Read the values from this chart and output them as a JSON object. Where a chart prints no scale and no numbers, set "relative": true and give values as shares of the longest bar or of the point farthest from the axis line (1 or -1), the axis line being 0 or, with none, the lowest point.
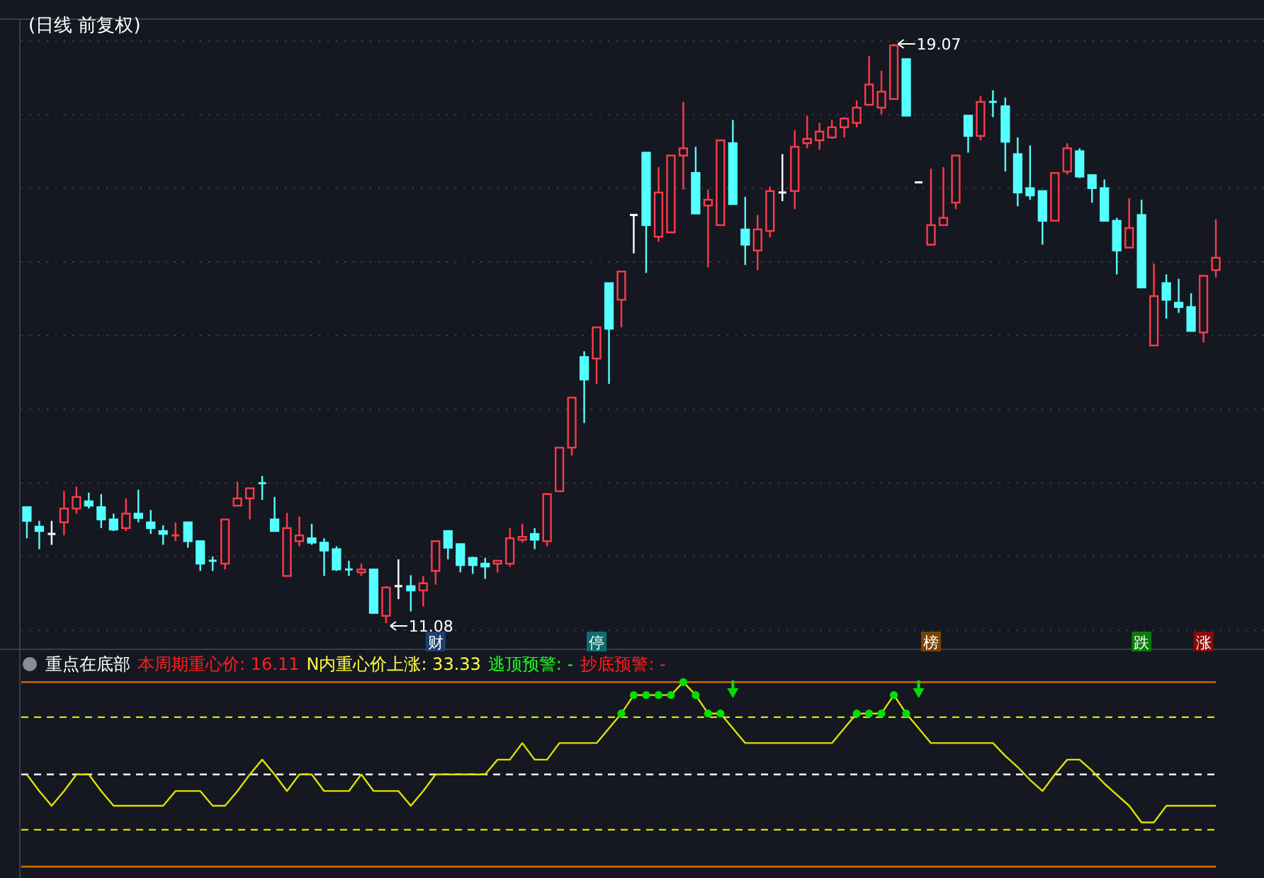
{
  "chart_data": [
    {
      "type": "candlestick",
      "title": "(日线 前复权)",
      "grid": "y",
      "categories": [
        null,
        null,
        null,
        null,
        null,
        null,
        null,
        null,
        null,
        null,
        null,
        null,
        null,
        null,
        null,
        null,
        null,
        null,
        null,
        null,
        null,
        null,
        null,
        null,
        null,
        null,
        null,
        null,
        null,
        null,
        null,
        null,
        null,
        "财",
        null,
        null,
        null,
        null,
        null,
        null,
        null,
        null,
        null,
        null,
        null,
        null,
        "停",
        null,
        null,
        null,
        null,
        null,
        null,
        null,
        null,
        null,
        null,
        null,
        null,
        null,
        null,
        null,
        null,
        null,
        null,
        null,
        null,
        null,
        null,
        null,
        null,
        null,
        null,
        "榜",
        null,
        null,
        null,
        null,
        null,
        null,
        null,
        null,
        null,
        null,
        null,
        null,
        null,
        null,
        null,
        null,
        "跌",
        null,
        null,
        null,
        null,
        "涨",
        null
      ],
      "ohlc": [
        [
          12.68,
          12.68,
          12.25,
          12.49
        ],
        [
          12.41,
          12.49,
          12.1,
          12.35
        ],
        [
          12.31,
          12.49,
          12.16,
          12.31
        ],
        [
          12.47,
          12.9,
          12.29,
          12.66
        ],
        [
          12.66,
          12.96,
          12.59,
          12.82
        ],
        [
          12.76,
          12.88,
          12.66,
          12.7
        ],
        [
          12.68,
          12.86,
          12.39,
          12.51
        ],
        [
          12.51,
          12.59,
          12.35,
          12.37
        ],
        [
          12.39,
          12.8,
          12.35,
          12.59
        ],
        [
          12.59,
          12.92,
          12.47,
          12.53
        ],
        [
          12.47,
          12.64,
          12.31,
          12.39
        ],
        [
          12.35,
          12.43,
          12.16,
          12.31
        ],
        [
          12.27,
          12.47,
          12.21,
          12.29
        ],
        [
          12.47,
          12.47,
          12.12,
          12.21
        ],
        [
          12.21,
          12.21,
          11.8,
          11.9
        ],
        [
          11.94,
          12.0,
          11.8,
          11.92
        ],
        [
          11.9,
          12.51,
          11.82,
          12.51
        ],
        [
          12.7,
          13.03,
          12.7,
          12.8
        ],
        [
          12.8,
          12.94,
          12.51,
          12.94
        ],
        [
          13.01,
          13.11,
          12.78,
          13.01
        ],
        [
          12.51,
          12.82,
          12.35,
          12.35
        ],
        [
          11.73,
          12.6,
          11.73,
          12.39
        ],
        [
          12.21,
          12.55,
          12.14,
          12.29
        ],
        [
          12.25,
          12.45,
          12.16,
          12.19
        ],
        [
          12.19,
          12.25,
          11.73,
          12.08
        ],
        [
          12.1,
          12.14,
          11.8,
          11.82
        ],
        [
          11.82,
          11.94,
          11.73,
          11.8
        ],
        [
          11.78,
          11.9,
          11.73,
          11.82
        ],
        [
          11.82,
          11.82,
          11.22,
          11.22
        ],
        [
          11.18,
          11.59,
          11.08,
          11.57
        ],
        [
          11.59,
          11.96,
          11.41,
          11.59
        ],
        [
          11.59,
          11.74,
          11.24,
          11.53
        ],
        [
          11.53,
          11.73,
          11.31,
          11.63
        ],
        [
          11.8,
          12.21,
          11.61,
          12.21
        ],
        [
          12.35,
          12.35,
          11.96,
          12.12
        ],
        [
          12.17,
          12.17,
          11.78,
          11.88
        ],
        [
          11.98,
          11.98,
          11.76,
          11.88
        ],
        [
          11.9,
          11.98,
          11.69,
          11.86
        ],
        [
          11.9,
          11.94,
          11.78,
          11.94
        ],
        [
          11.9,
          12.39,
          11.86,
          12.25
        ],
        [
          12.23,
          12.45,
          12.19,
          12.27
        ],
        [
          12.31,
          12.39,
          12.1,
          12.23
        ],
        [
          12.21,
          12.86,
          12.14,
          12.86
        ],
        [
          12.9,
          13.5,
          12.9,
          13.5
        ],
        [
          13.5,
          14.19,
          13.39,
          14.19
        ],
        [
          14.75,
          14.83,
          13.84,
          14.44
        ],
        [
          14.73,
          15.16,
          14.38,
          15.16
        ],
        [
          15.77,
          15.77,
          14.38,
          15.14
        ],
        [
          15.54,
          15.93,
          15.16,
          15.93
        ],
        [
          16.71,
          16.71,
          16.18,
          16.71
        ],
        [
          17.57,
          17.57,
          15.91,
          16.57
        ],
        [
          16.41,
          17.37,
          16.34,
          17.02
        ],
        [
          16.47,
          17.53,
          16.47,
          17.53
        ],
        [
          17.53,
          18.27,
          17.06,
          17.63
        ],
        [
          17.29,
          17.65,
          16.73,
          16.73
        ],
        [
          16.84,
          17.06,
          15.99,
          16.92
        ],
        [
          16.57,
          17.74,
          16.57,
          17.74
        ],
        [
          17.7,
          18.02,
          16.86,
          16.86
        ],
        [
          16.51,
          16.96,
          16.02,
          16.3
        ],
        [
          16.22,
          16.71,
          15.95,
          16.51
        ],
        [
          16.49,
          17.1,
          16.4,
          17.04
        ],
        [
          17.02,
          17.55,
          16.9,
          17.02
        ],
        [
          17.04,
          17.88,
          16.79,
          17.65
        ],
        [
          17.7,
          18.08,
          17.63,
          17.76
        ],
        [
          17.74,
          17.98,
          17.61,
          17.86
        ],
        [
          17.78,
          18.02,
          17.76,
          17.92
        ],
        [
          17.92,
          18.06,
          17.78,
          18.04
        ],
        [
          17.98,
          18.29,
          17.92,
          18.19
        ],
        [
          18.23,
          18.9,
          18.23,
          18.51
        ],
        [
          18.19,
          18.7,
          18.1,
          18.41
        ],
        [
          18.31,
          19.07,
          18.31,
          19.05
        ],
        [
          18.86,
          18.86,
          18.08,
          18.08
        ],
        [
          17.16,
          17.16,
          17.16,
          17.16
        ],
        [
          16.3,
          17.35,
          16.3,
          16.57
        ],
        [
          16.57,
          17.37,
          16.57,
          16.67
        ],
        [
          16.88,
          17.53,
          16.79,
          17.53
        ],
        [
          18.08,
          18.08,
          17.57,
          17.8
        ],
        [
          17.8,
          18.35,
          17.74,
          18.27
        ],
        [
          18.27,
          18.43,
          18.06,
          18.25
        ],
        [
          18.21,
          18.33,
          17.31,
          17.72
        ],
        [
          17.55,
          17.78,
          16.83,
          17.02
        ],
        [
          17.08,
          17.67,
          16.92,
          16.98
        ],
        [
          17.04,
          17.04,
          16.3,
          16.63
        ],
        [
          16.63,
          17.29,
          16.63,
          17.29
        ],
        [
          17.31,
          17.7,
          17.27,
          17.63
        ],
        [
          17.59,
          17.63,
          17.22,
          17.24
        ],
        [
          17.26,
          17.27,
          16.88,
          17.08
        ],
        [
          17.08,
          17.2,
          16.63,
          16.63
        ],
        [
          16.63,
          16.67,
          15.89,
          16.22
        ],
        [
          16.26,
          16.94,
          16.26,
          16.53
        ],
        [
          16.71,
          16.92,
          15.71,
          15.71
        ],
        [
          14.91,
          16.04,
          14.91,
          15.59
        ],
        [
          15.77,
          15.89,
          15.28,
          15.54
        ],
        [
          15.5,
          15.83,
          15.36,
          15.44
        ],
        [
          15.44,
          15.63,
          15.11,
          15.11
        ],
        [
          15.09,
          15.87,
          14.95,
          15.87
        ],
        [
          15.95,
          16.65,
          15.85,
          16.12
        ]
      ],
      "colors": [
        "#54ffff",
        "#54ffff",
        "#ffffff",
        "#ff3a4a",
        "#ff3a4a",
        "#54ffff",
        "#54ffff",
        "#54ffff",
        "#ff3a4a",
        "#54ffff",
        "#54ffff",
        "#54ffff",
        "#ff3a4a",
        "#54ffff",
        "#54ffff",
        "#54ffff",
        "#ff3a4a",
        "#ff3a4a",
        "#ff3a4a",
        "#54ffff",
        "#54ffff",
        "#ff3a4a",
        "#ff3a4a",
        "#54ffff",
        "#54ffff",
        "#54ffff",
        "#54ffff",
        "#ff3a4a",
        "#54ffff",
        "#ff3a4a",
        "#ffffff",
        "#54ffff",
        "#ff3a4a",
        "#ff3a4a",
        "#54ffff",
        "#54ffff",
        "#54ffff",
        "#54ffff",
        "#ff3a4a",
        "#ff3a4a",
        "#ff3a4a",
        "#54ffff",
        "#ff3a4a",
        "#ff3a4a",
        "#ff3a4a",
        "#54ffff",
        "#ff3a4a",
        "#54ffff",
        "#ff3a4a",
        "#ffffff",
        "#54ffff",
        "#ff3a4a",
        "#ff3a4a",
        "#ff3a4a",
        "#54ffff",
        "#ff3a4a",
        "#ff3a4a",
        "#54ffff",
        "#54ffff",
        "#ff3a4a",
        "#ff3a4a",
        "#ffffff",
        "#ff3a4a",
        "#ff3a4a",
        "#ff3a4a",
        "#ff3a4a",
        "#ff3a4a",
        "#ff3a4a",
        "#ff3a4a",
        "#ff3a4a",
        "#ff3a4a",
        "#54ffff",
        "#ffffff",
        "#ff3a4a",
        "#ff3a4a",
        "#ff3a4a",
        "#54ffff",
        "#ff3a4a",
        "#54ffff",
        "#54ffff",
        "#54ffff",
        "#54ffff",
        "#54ffff",
        "#ff3a4a",
        "#ff3a4a",
        "#54ffff",
        "#54ffff",
        "#54ffff",
        "#54ffff",
        "#ff3a4a",
        "#54ffff",
        "#ff3a4a",
        "#54ffff",
        "#54ffff",
        "#54ffff",
        "#ff3a4a",
        "#ff3a4a"
      ],
      "annotations": [
        "19.07",
        "11.08"
      ]
    },
    {
      "type": "line",
      "title": "重点在底部",
      "relative": true,
      "annotations": [
        "本周期重心价: 16.11",
        "N内重心价上涨: 33.33",
        "逃顶预警: -",
        "抄底预警: -"
      ],
      "categories": [
        null,
        null,
        null,
        null,
        null,
        null,
        null,
        null,
        null,
        null,
        null,
        null,
        null,
        null,
        null,
        null,
        null,
        null,
        null,
        null,
        null,
        null,
        null,
        null,
        null,
        null,
        null,
        null,
        null,
        null,
        null,
        null,
        null,
        null,
        null,
        null,
        null,
        null,
        null,
        null,
        null,
        null,
        null,
        null,
        null,
        null,
        null,
        null,
        null,
        null,
        null,
        null,
        null,
        null,
        null,
        null,
        null,
        null,
        null,
        null,
        null,
        null,
        null,
        null,
        null,
        null,
        null,
        null,
        null,
        null,
        null,
        null,
        null,
        null,
        null,
        null,
        null,
        null,
        null,
        null,
        null,
        null,
        null,
        null,
        null,
        null,
        null,
        null,
        null,
        null,
        null,
        null,
        null,
        null,
        null,
        null,
        null
      ],
      "ref_lines": [
        {
          "axis": "y",
          "value": 1,
          "color": "#e07000",
          "line_style": "solid"
        },
        {
          "axis": "y",
          "value": 0.81,
          "color": "#e0e000",
          "line_style": "dashed"
        },
        {
          "axis": "y",
          "value": 0.5,
          "color": "#ffffff",
          "line_style": "dashed"
        },
        {
          "axis": "y",
          "value": 0.2,
          "color": "#e0e000",
          "line_style": "dashed"
        }
      ],
      "series": [
        {
          "type": "line",
          "color": "#e0e000",
          "marker": "none",
          "values": [
            0.5,
            0.41,
            0.33,
            0.41,
            0.5,
            0.5,
            0.41,
            0.33,
            0.33,
            0.33,
            0.33,
            0.33,
            0.41,
            0.41,
            0.41,
            0.33,
            0.33,
            0.41,
            0.5,
            0.58,
            0.5,
            0.41,
            0.5,
            0.5,
            0.41,
            0.41,
            0.41,
            0.5,
            0.41,
            0.41,
            0.41,
            0.33,
            0.41,
            0.5,
            0.5,
            0.5,
            0.5,
            0.5,
            0.58,
            0.58,
            0.67,
            0.58,
            0.58,
            0.67,
            0.67,
            0.67,
            0.67,
            0.75,
            0.83,
            0.93,
            0.93,
            0.93,
            0.93,
            1,
            0.93,
            0.83,
            0.83,
            0.75,
            0.67,
            0.67,
            0.67,
            0.67,
            0.67,
            0.67,
            0.67,
            0.67,
            0.75,
            0.83,
            0.83,
            0.83,
            0.93,
            0.83,
            0.75,
            0.67,
            0.67,
            0.67,
            0.67,
            0.67,
            0.67,
            0.6,
            0.54,
            0.47,
            0.41,
            0.5,
            0.58,
            0.58,
            0.52,
            0.45,
            0.39,
            0.33,
            0.24,
            0.24,
            0.33,
            0.33,
            0.33,
            0.33,
            0.33
          ]
        },
        {
          "type": "scatter",
          "color": "#00e000",
          "marker": "circle",
          "values": [
            null,
            null,
            null,
            null,
            null,
            null,
            null,
            null,
            null,
            null,
            null,
            null,
            null,
            null,
            null,
            null,
            null,
            null,
            null,
            null,
            null,
            null,
            null,
            null,
            null,
            null,
            null,
            null,
            null,
            null,
            null,
            null,
            null,
            null,
            null,
            null,
            null,
            null,
            null,
            null,
            null,
            null,
            null,
            null,
            null,
            null,
            null,
            null,
            0.83,
            0.93,
            0.93,
            0.93,
            0.93,
            1,
            0.93,
            0.83,
            0.83,
            null,
            null,
            null,
            null,
            null,
            null,
            null,
            null,
            null,
            null,
            0.83,
            0.83,
            0.83,
            0.93,
            0.83,
            null,
            null,
            null,
            null,
            null,
            null,
            null,
            null,
            null,
            null,
            null,
            null,
            null,
            null,
            null,
            null,
            null,
            null,
            null,
            null,
            null,
            null,
            null,
            null,
            null
          ]
        },
        {
          "type": "scatter",
          "color": "#00e000",
          "marker": "triangle",
          "values": [
            null,
            null,
            null,
            null,
            null,
            null,
            null,
            null,
            null,
            null,
            null,
            null,
            null,
            null,
            null,
            null,
            null,
            null,
            null,
            null,
            null,
            null,
            null,
            null,
            null,
            null,
            null,
            null,
            null,
            null,
            null,
            null,
            null,
            null,
            null,
            null,
            null,
            null,
            null,
            null,
            null,
            null,
            null,
            null,
            null,
            null,
            null,
            null,
            null,
            null,
            null,
            null,
            null,
            null,
            null,
            null,
            null,
            0.94,
            null,
            null,
            null,
            null,
            null,
            null,
            null,
            null,
            null,
            null,
            null,
            null,
            null,
            null,
            0.94,
            null,
            null,
            null,
            null,
            null,
            null,
            null,
            null,
            null,
            null,
            null,
            null,
            null,
            null,
            null,
            null,
            null,
            null,
            null,
            null,
            null,
            null,
            null,
            null
          ]
        }
      ]
    }
  ]
}
